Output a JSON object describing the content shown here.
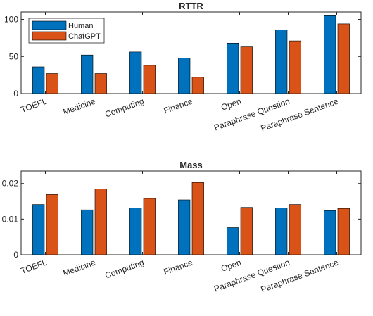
{
  "chart_data": [
    {
      "type": "bar",
      "title": "RTTR",
      "xlabel": "",
      "ylabel": "",
      "categories": [
        "TOEFL",
        "Medicine",
        "Computing",
        "Finance",
        "Open",
        "Paraphrase Question",
        "Paraphrase Sentence"
      ],
      "series": [
        {
          "name": "Human",
          "color": "#0072BD",
          "values": [
            36,
            52,
            56,
            48,
            68,
            86,
            105
          ]
        },
        {
          "name": "ChatGPT",
          "color": "#D95319",
          "values": [
            27,
            27,
            38,
            22,
            63,
            71,
            94
          ]
        }
      ],
      "ylim": [
        0,
        110
      ],
      "yticks": [
        0,
        50,
        100
      ],
      "ytick_labels": [
        "0",
        "50",
        "100"
      ],
      "legend": "top-left",
      "grid": false
    },
    {
      "type": "bar",
      "title": "Mass",
      "xlabel": "",
      "ylabel": "",
      "categories": [
        "TOEFL",
        "Medicine",
        "Computing",
        "Finance",
        "Open",
        "Paraphrase Question",
        "Paraphrase Sentence"
      ],
      "series": [
        {
          "name": "Human",
          "color": "#0072BD",
          "values": [
            0.0141,
            0.0126,
            0.0131,
            0.0154,
            0.0076,
            0.0131,
            0.0124
          ]
        },
        {
          "name": "ChatGPT",
          "color": "#D95319",
          "values": [
            0.0169,
            0.0185,
            0.0158,
            0.0203,
            0.0133,
            0.0141,
            0.013
          ]
        }
      ],
      "ylim": [
        0,
        0.0235
      ],
      "yticks": [
        0,
        0.01,
        0.02
      ],
      "ytick_labels": [
        "0",
        "0.01",
        "0.02"
      ],
      "grid": false
    }
  ]
}
